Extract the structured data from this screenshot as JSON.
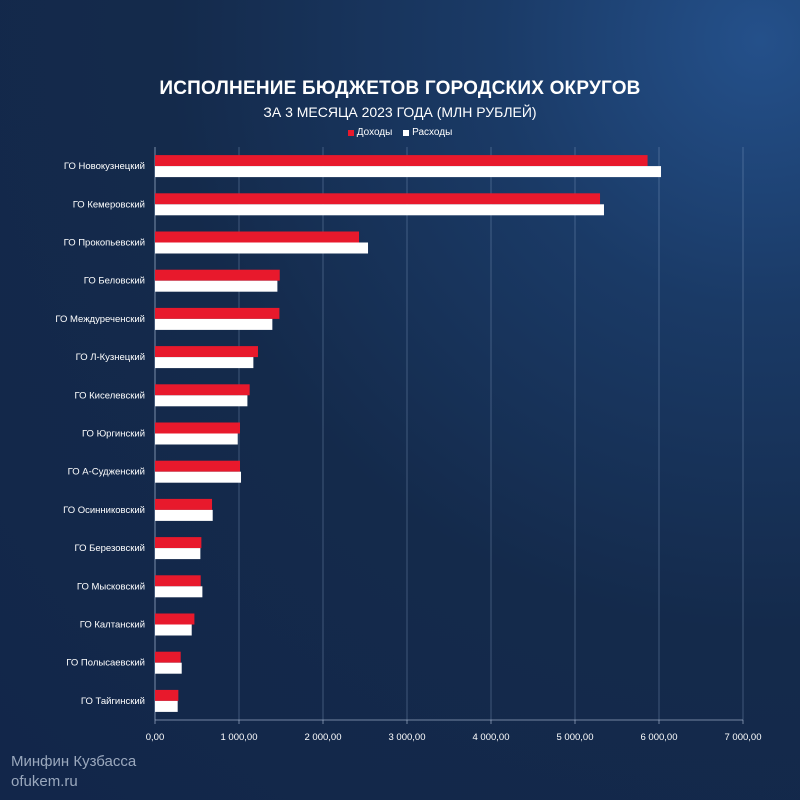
{
  "chart_data": {
    "type": "bar",
    "orientation": "horizontal",
    "title": "ИСПОЛНЕНИЕ БЮДЖЕТОВ ГОРОДСКИХ ОКРУГОВ",
    "subtitle": "ЗА 3 МЕСЯЦА 2023 ГОДА (МЛН РУБЛЕЙ)",
    "categories": [
      "ГО Новокузнецкий",
      "ГО Кемеровский",
      "ГО Прокопьевский",
      "ГО Беловский",
      "ГО Междуреченский",
      "ГО Л-Кузнецкий",
      "ГО Киселевский",
      "ГО Юргинский",
      "ГО А-Судженский",
      "ГО Осинниковский",
      "ГО Березовский",
      "ГО Мысковский",
      "ГО Калтанский",
      "ГО Полысаевский",
      "ГО Тайгинский"
    ],
    "series": [
      {
        "name": "Доходы",
        "color": "#e8192c",
        "values": [
          5864,
          5298,
          2429,
          1485,
          1481,
          1226,
          1127,
          1012,
          1012,
          679,
          552,
          544,
          469,
          306,
          278
        ]
      },
      {
        "name": "Расходы",
        "color": "#ffffff",
        "values": [
          6024,
          5345,
          2536,
          1457,
          1397,
          1171,
          1100,
          985,
          1024,
          687,
          540,
          564,
          437,
          318,
          270
        ]
      }
    ],
    "xlim": [
      0,
      7000
    ],
    "xticks": [
      0,
      1000,
      2000,
      3000,
      4000,
      5000,
      6000,
      7000
    ],
    "xtick_labels": [
      "0,00",
      "1 000,00",
      "2 000,00",
      "3 000,00",
      "4 000,00",
      "5 000,00",
      "6 000,00",
      "7 000,00"
    ],
    "grid": true,
    "legend_position": "top"
  },
  "footer": {
    "line1": "Минфин Кузбасса",
    "line2": "ofukem.ru"
  },
  "colors": {
    "background": "#142a4b",
    "income": "#e8192c",
    "expense": "#ffffff"
  }
}
